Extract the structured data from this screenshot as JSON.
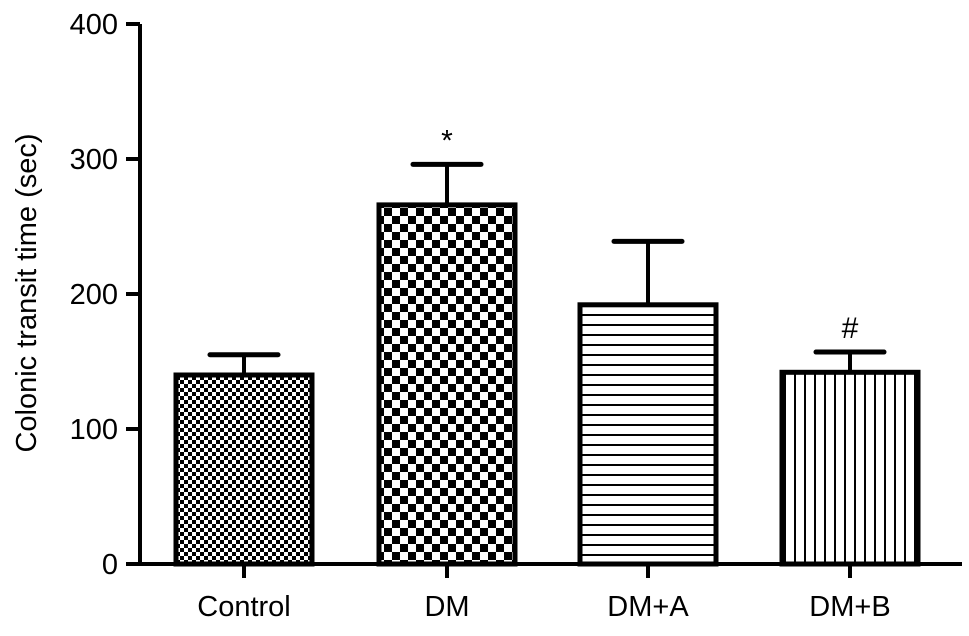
{
  "chart_data": {
    "type": "bar",
    "title": "",
    "xlabel": "",
    "ylabel": "Colonic transit time (sec)",
    "ylim": [
      0,
      400
    ],
    "yticks": [
      0,
      100,
      200,
      300,
      400
    ],
    "grid": false,
    "categories": [
      "Control",
      "DM",
      "DM+A",
      "DM+B"
    ],
    "values": [
      140,
      266,
      192,
      142
    ],
    "errors": [
      15,
      30,
      47,
      15
    ],
    "annotations": [
      "",
      "*",
      "",
      "#"
    ],
    "patterns": [
      "fine-checker",
      "checker",
      "horizontal-lines",
      "vertical-lines"
    ],
    "bar_color": "#000000",
    "background": "#ffffff"
  }
}
